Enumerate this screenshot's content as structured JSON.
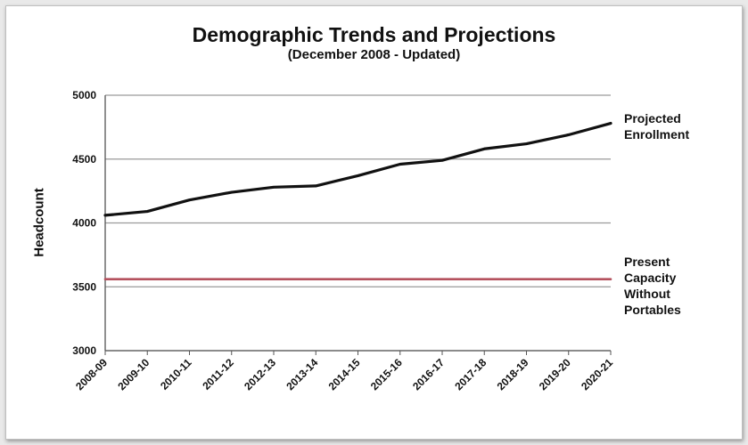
{
  "chart_data": {
    "type": "line",
    "title": "Demographic Trends and Projections",
    "subtitle": "(December 2008 - Updated)",
    "ylabel": "Headcount",
    "xlabel": "",
    "ylim": [
      3000,
      5000
    ],
    "yticks": [
      3000,
      3500,
      4000,
      4500,
      5000
    ],
    "grid": true,
    "categories": [
      "2008-09",
      "2009-10",
      "2010-11",
      "2011-12",
      "2012-13",
      "2013-14",
      "2014-15",
      "2015-16",
      "2016-17",
      "2017-18",
      "2018-19",
      "2019-20",
      "2020-21"
    ],
    "series": [
      {
        "name": "Projected Enrollment",
        "label_lines": [
          "Projected",
          "Enrollment"
        ],
        "color": "#111111",
        "values": [
          4060,
          4090,
          4180,
          4240,
          4280,
          4290,
          4370,
          4460,
          4490,
          4580,
          4620,
          4690,
          4780
        ]
      },
      {
        "name": "Present Capacity Without Portables",
        "label_lines": [
          "Present",
          "Capacity",
          "Without",
          "Portables"
        ],
        "color": "#b5515e",
        "values": [
          3560,
          3560,
          3560,
          3560,
          3560,
          3560,
          3560,
          3560,
          3560,
          3560,
          3560,
          3560,
          3560
        ]
      }
    ]
  }
}
